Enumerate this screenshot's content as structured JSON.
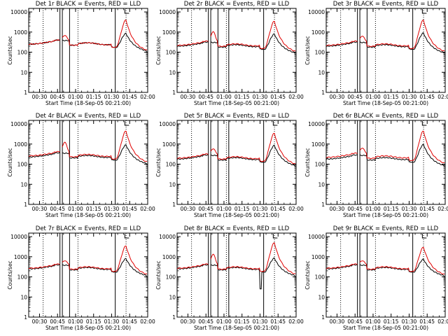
{
  "figure": {
    "title_suffix": " BLACK = Events, RED = LLD",
    "xlabel": "Start Time (18-Sep-05 00:21:00)",
    "ylabel": "Counts/sec"
  },
  "colors": {
    "events": "#000000",
    "lld": "#e00000",
    "axes": "#000000",
    "background": "#ffffff"
  },
  "chart_data": {
    "type": "line",
    "grid": false,
    "xlim_minutes": [
      21,
      120
    ],
    "xticks": [
      {
        "label": "00:30",
        "value": 30
      },
      {
        "label": "00:45",
        "value": 45
      },
      {
        "label": "01:00",
        "value": 60
      },
      {
        "label": "01:15",
        "value": 75
      },
      {
        "label": "01:30",
        "value": 90
      },
      {
        "label": "01:45",
        "value": 105
      },
      {
        "label": "02:00",
        "value": 120
      }
    ],
    "ylim": [
      1,
      15000
    ],
    "yscale": "log",
    "yticks": [
      {
        "label": "1",
        "value": 1
      },
      {
        "label": "10",
        "value": 10
      },
      {
        "label": "100",
        "value": 100
      },
      {
        "label": "1000",
        "value": 1000
      },
      {
        "label": "10000",
        "value": 10000
      }
    ],
    "common_vlines_solid": [
      47,
      49,
      55,
      93
    ],
    "common_vlines_dotted": [
      33,
      62,
      102
    ],
    "panels": [
      {
        "detector": "Det 1r",
        "events_base": 250,
        "lld_base": 250,
        "peak_events": 850,
        "peak_lld": 4000,
        "bump_lld": 700,
        "bump_events": 200,
        "extra_solid": [],
        "dip_events": null
      },
      {
        "detector": "Det 2r",
        "events_base": 200,
        "lld_base": 220,
        "peak_events": 800,
        "peak_lld": 3500,
        "bump_lld": 1100,
        "bump_events": 230,
        "extra_solid": [
          64
        ],
        "dip_events": null
      },
      {
        "detector": "Det 3r",
        "events_base": 200,
        "lld_base": 220,
        "peak_events": 900,
        "peak_lld": 4000,
        "bump_lld": 650,
        "bump_events": 180,
        "extra_solid": [],
        "dip_events": null
      },
      {
        "detector": "Det 4r",
        "events_base": 230,
        "lld_base": 260,
        "peak_events": 900,
        "peak_lld": 4500,
        "bump_lld": 1300,
        "bump_events": 190,
        "extra_solid": [],
        "dip_events": null
      },
      {
        "detector": "Det 5r",
        "events_base": 180,
        "lld_base": 200,
        "peak_events": 850,
        "peak_lld": 3500,
        "bump_lld": 600,
        "bump_events": 200,
        "extra_solid": [
          64
        ],
        "dip_events": null
      },
      {
        "detector": "Det 6r",
        "events_base": 180,
        "lld_base": 220,
        "peak_events": 950,
        "peak_lld": 4500,
        "bump_lld": 650,
        "bump_events": 210,
        "extra_solid": [],
        "dip_events": null
      },
      {
        "detector": "Det 7r",
        "events_base": 250,
        "lld_base": 270,
        "peak_events": 800,
        "peak_lld": 3500,
        "bump_lld": 650,
        "bump_events": 210,
        "extra_solid": [],
        "dip_events": null
      },
      {
        "detector": "Det 8r",
        "events_base": 250,
        "lld_base": 270,
        "peak_events": 850,
        "peak_lld": 5000,
        "bump_lld": 1400,
        "bump_events": 190,
        "extra_solid": [
          64
        ],
        "dip_events": 25
      },
      {
        "detector": "Det 9r",
        "events_base": 250,
        "lld_base": 270,
        "peak_events": 750,
        "peak_lld": 3000,
        "bump_lld": 650,
        "bump_events": 200,
        "extra_solid": [],
        "dip_events": null
      }
    ]
  }
}
